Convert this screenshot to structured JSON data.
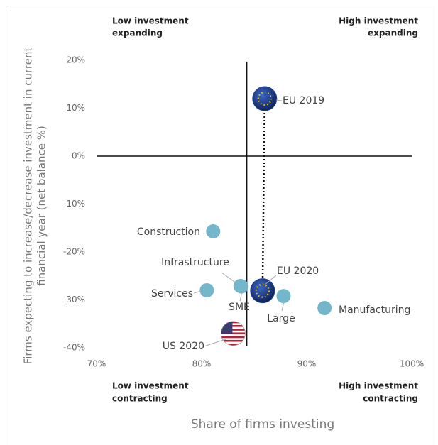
{
  "chart_data": {
    "type": "scatter",
    "xlabel": "Share of firms investing",
    "ylabel": [
      "Firms expecting to increase/decrease investment in current",
      "financial year  (net balance %)"
    ],
    "quadrants": {
      "top_left": [
        "Low investment",
        "expanding"
      ],
      "top_right": [
        "High investment",
        "expanding"
      ],
      "bottom_left": [
        "Low investment",
        "contracting"
      ],
      "bottom_right": [
        "High investment",
        "contracting"
      ]
    },
    "xlim": [
      70,
      100
    ],
    "xticks": [
      {
        "value": 70,
        "label": "70%"
      },
      {
        "value": 80,
        "label": "80%"
      },
      {
        "value": 90,
        "label": "90%"
      },
      {
        "value": 100,
        "label": "100%"
      }
    ],
    "ylim": [
      -40,
      20
    ],
    "yticks": [
      {
        "value": 20,
        "label": "20%"
      },
      {
        "value": 10,
        "label": "10%"
      },
      {
        "value": 0,
        "label": "0%"
      },
      {
        "value": -10,
        "label": "-10%"
      },
      {
        "value": -20,
        "label": "-20%"
      },
      {
        "value": -30,
        "label": "-30%"
      },
      {
        "value": -40,
        "label": "-40%"
      }
    ],
    "vline": 84.3,
    "hline": 0,
    "points": [
      {
        "name": "EU 2019",
        "x": 86.0,
        "y": 12,
        "color": "#1f3f8f",
        "marker": "eu"
      },
      {
        "name": "Construction",
        "x": 81.1,
        "y": -15.7,
        "color": "#74b7cb",
        "marker": "circle"
      },
      {
        "name": "Infrastructure",
        "x": 83.7,
        "y": -27.1,
        "color": "#74b7cb",
        "marker": "circle"
      },
      {
        "name": "Services",
        "x": 80.5,
        "y": -28,
        "color": "#74b7cb",
        "marker": "circle"
      },
      {
        "name": "SME",
        "x": 83.8,
        "y": -27.2,
        "color": "#74b7cb",
        "marker": "circle"
      },
      {
        "name": "EU 2020",
        "x": 85.8,
        "y": -28.1,
        "color": "#1f3f8f",
        "marker": "eu"
      },
      {
        "name": "Large",
        "x": 87.8,
        "y": -29.2,
        "color": "#74b7cb",
        "marker": "circle"
      },
      {
        "name": "Manufacturing",
        "x": 91.7,
        "y": -31.7,
        "color": "#74b7cb",
        "marker": "circle"
      },
      {
        "name": "US 2020",
        "x": 83.0,
        "y": -37,
        "color": "#b22234",
        "marker": "us"
      }
    ]
  }
}
